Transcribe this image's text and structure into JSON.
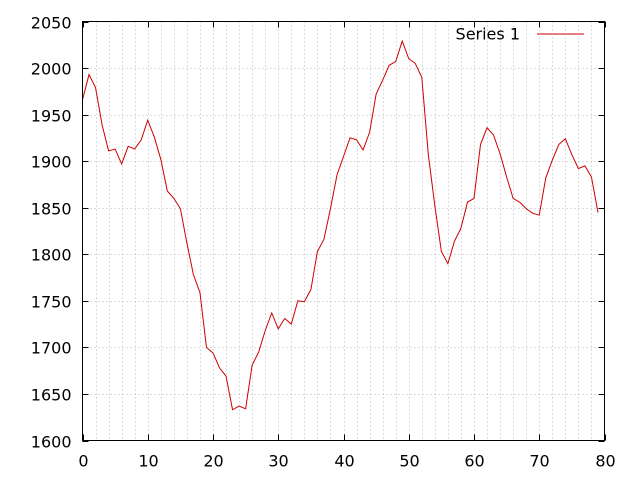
{
  "chart_data": {
    "type": "line",
    "title": "",
    "xlabel": "",
    "ylabel": "",
    "xlim": [
      0,
      80
    ],
    "ylim": [
      1600,
      2050
    ],
    "x_ticks": [
      "0",
      "10",
      "20",
      "30",
      "40",
      "50",
      "60",
      "70",
      "80"
    ],
    "y_ticks": [
      "1600",
      "1650",
      "1700",
      "1750",
      "1800",
      "1850",
      "1900",
      "1950",
      "2000",
      "2050"
    ],
    "grid": true,
    "legend_position": "top-right",
    "series": [
      {
        "name": "Series 1",
        "color": "#cc0000",
        "x": [
          0,
          1,
          2,
          3,
          4,
          5,
          6,
          7,
          8,
          9,
          10,
          11,
          12,
          13,
          14,
          15,
          16,
          17,
          18,
          19,
          20,
          21,
          22,
          23,
          24,
          25,
          26,
          27,
          28,
          29,
          30,
          31,
          32,
          33,
          34,
          35,
          36,
          37,
          38,
          39,
          40,
          41,
          42,
          43,
          44,
          45,
          46,
          47,
          48,
          49,
          50,
          51,
          52,
          53,
          54,
          55,
          56,
          57,
          58,
          59,
          60,
          61,
          62,
          63,
          64,
          65,
          66,
          67,
          68,
          69,
          70,
          71,
          72,
          73,
          74,
          75,
          76,
          77,
          78,
          79
        ],
        "values": [
          1966,
          1993,
          1979,
          1939,
          1911,
          1913,
          1897,
          1916,
          1913,
          1923,
          1944,
          1926,
          1902,
          1868,
          1860,
          1849,
          1812,
          1778,
          1759,
          1700,
          1694,
          1678,
          1669,
          1633,
          1637,
          1634,
          1681,
          1695,
          1718,
          1737,
          1720,
          1731,
          1725,
          1750,
          1749,
          1762,
          1803,
          1816,
          1849,
          1885,
          1905,
          1925,
          1923,
          1912,
          1931,
          1972,
          1987,
          2003,
          2007,
          2029,
          2010,
          2005,
          1990,
          1907,
          1852,
          1803,
          1790,
          1814,
          1828,
          1856,
          1860,
          1918,
          1936,
          1928,
          1908,
          1883,
          1860,
          1856,
          1849,
          1844,
          1842,
          1882,
          1901,
          1918,
          1924,
          1907,
          1892,
          1895,
          1883,
          1845
        ]
      }
    ]
  }
}
